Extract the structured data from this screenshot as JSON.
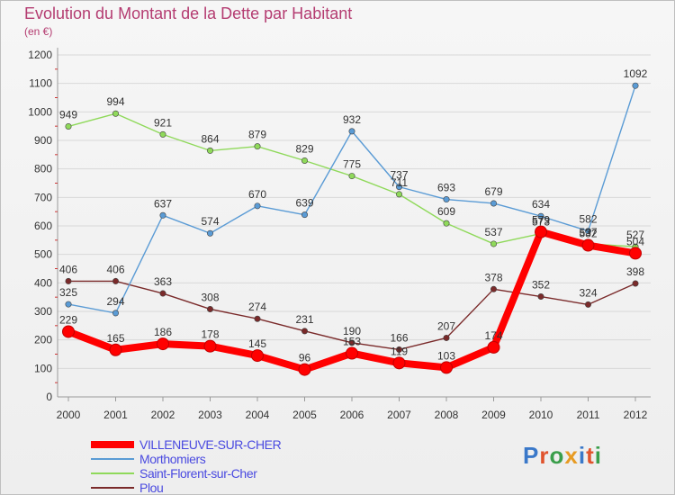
{
  "header": {
    "title": "Evolution du Montant de la Dette par Habitant",
    "subtitle": "(en €)"
  },
  "colors": {
    "title": "#b43c71",
    "legend_text": "#4a4ae0",
    "axis": "#9a9a9a",
    "grid": "#d8d8d8"
  },
  "logo": {
    "text": "Proxiti"
  },
  "chart_data": {
    "type": "line",
    "title": "Evolution du Montant de la Dette par Habitant",
    "subtitle": "(en €)",
    "xlabel": "",
    "ylabel": "",
    "x": [
      "2000",
      "2001",
      "2002",
      "2003",
      "2004",
      "2005",
      "2006",
      "2007",
      "2008",
      "2009",
      "2010",
      "2011",
      "2012"
    ],
    "ylim": [
      0,
      1200
    ],
    "yticks": [
      0,
      100,
      200,
      300,
      400,
      500,
      600,
      700,
      800,
      900,
      1000,
      1100,
      1200
    ],
    "grid": "horizontal",
    "legend": "bottom-left",
    "series": [
      {
        "name": "VILLENEUVE-SUR-CHER",
        "color": "#ff0000",
        "values": [
          229,
          165,
          186,
          178,
          145,
          96,
          153,
          119,
          103,
          174,
          579,
          532,
          504
        ]
      },
      {
        "name": "Morthomiers",
        "color": "#5a9bd5",
        "values": [
          325,
          294,
          637,
          574,
          670,
          639,
          932,
          737,
          693,
          679,
          634,
          582,
          1092
        ]
      },
      {
        "name": "Saint-Florent-sur-Cher",
        "color": "#8fd95a",
        "values": [
          949,
          994,
          921,
          864,
          879,
          829,
          775,
          711,
          609,
          537,
          573,
          537,
          527
        ]
      },
      {
        "name": "Plou",
        "color": "#7a2a2a",
        "values": [
          406,
          406,
          363,
          308,
          274,
          231,
          190,
          166,
          207,
          378,
          352,
          324,
          398
        ]
      }
    ]
  }
}
